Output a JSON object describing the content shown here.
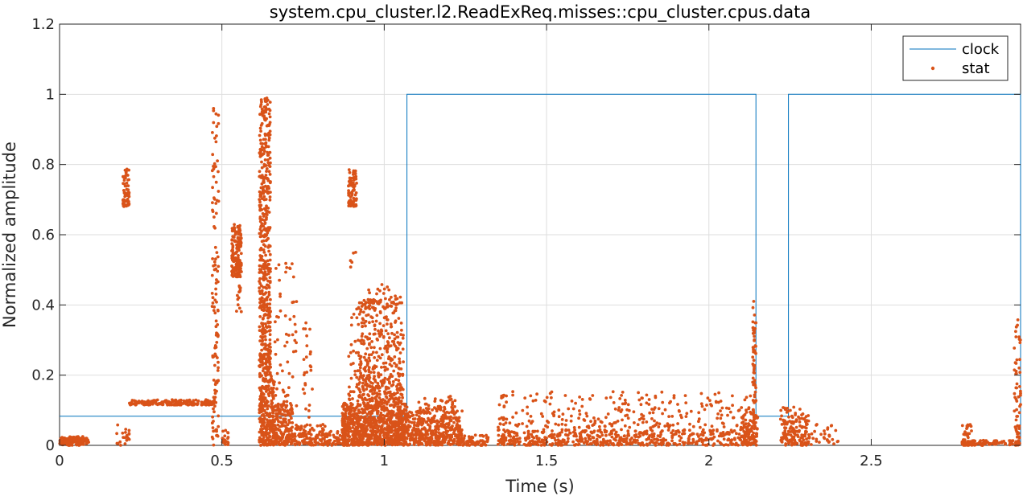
{
  "chart_data": {
    "type": "line",
    "title": "system.cpu_cluster.l2.ReadExReq.misses::cpu_cluster.cpus.data",
    "xlabel": "Time (s)",
    "ylabel": "Normalized amplitude",
    "xlim": [
      0,
      2.96
    ],
    "ylim": [
      0,
      1.2
    ],
    "xticks": [
      0,
      0.5,
      1,
      1.5,
      2,
      2.5
    ],
    "xtick_labels": [
      "0",
      "0.5",
      "1",
      "1.5",
      "2",
      "2.5"
    ],
    "yticks": [
      0,
      0.2,
      0.4,
      0.6,
      0.8,
      1,
      1.2
    ],
    "ytick_labels": [
      "0",
      "0.2",
      "0.4",
      "0.6",
      "0.8",
      "1",
      "1.2"
    ],
    "grid": true,
    "legend_position": "top-right",
    "series": [
      {
        "name": "clock",
        "style": "line",
        "color": "#0072BD",
        "x": [
          0,
          1.07,
          1.07,
          2.145,
          2.145,
          2.245,
          2.245,
          2.96,
          2.96
        ],
        "y": [
          0.083,
          0.083,
          1.0,
          1.0,
          0.083,
          0.083,
          1.0,
          1.0,
          0.0
        ]
      },
      {
        "name": "stat",
        "style": "markers",
        "color": "#D95319",
        "clusters": [
          {
            "x": [
              0.0,
              0.09
            ],
            "y": [
              0.0,
              0.025
            ],
            "n": 90
          },
          {
            "x": [
              0.0,
              0.09
            ],
            "y": [
              0.01,
              0.02
            ],
            "n": 60
          },
          {
            "x": [
              0.175,
              0.215
            ],
            "y": [
              0.0,
              0.06
            ],
            "n": 20
          },
          {
            "x": [
              0.195,
              0.215
            ],
            "y": [
              0.68,
              0.79
            ],
            "n": 60
          },
          {
            "x": [
              0.215,
              0.48
            ],
            "y": [
              0.115,
              0.13
            ],
            "n": 200
          },
          {
            "x": [
              0.47,
              0.49
            ],
            "y": [
              0.0,
              1.0
            ],
            "n": 120
          },
          {
            "x": [
              0.5,
              0.52
            ],
            "y": [
              0.0,
              0.05
            ],
            "n": 20
          },
          {
            "x": [
              0.53,
              0.56
            ],
            "y": [
              0.48,
              0.63
            ],
            "n": 160
          },
          {
            "x": [
              0.545,
              0.56
            ],
            "y": [
              0.38,
              0.64
            ],
            "n": 20
          },
          {
            "x": [
              0.615,
              0.66
            ],
            "y": [
              0.0,
              0.2
            ],
            "n": 250
          },
          {
            "x": [
              0.615,
              0.65
            ],
            "y": [
              0.2,
              0.99
            ],
            "n": 500
          },
          {
            "x": [
              0.655,
              0.72
            ],
            "y": [
              0.0,
              0.12
            ],
            "n": 200
          },
          {
            "x": [
              0.66,
              0.73
            ],
            "y": [
              0.1,
              0.52
            ],
            "n": 60
          },
          {
            "x": [
              0.72,
              0.82
            ],
            "y": [
              0.0,
              0.06
            ],
            "n": 120
          },
          {
            "x": [
              0.75,
              0.78
            ],
            "y": [
              0.08,
              0.4
            ],
            "n": 25
          },
          {
            "x": [
              0.82,
              0.88
            ],
            "y": [
              0.0,
              0.04
            ],
            "n": 50
          },
          {
            "x": [
              0.89,
              0.915
            ],
            "y": [
              0.68,
              0.79
            ],
            "n": 80
          },
          {
            "x": [
              0.89,
              0.92
            ],
            "y": [
              0.1,
              0.55
            ],
            "n": 40
          },
          {
            "x": [
              0.87,
              1.07
            ],
            "y": [
              0.0,
              0.12
            ],
            "n": 900
          },
          {
            "x": [
              0.92,
              1.06
            ],
            "y": [
              0.12,
              0.42
            ],
            "n": 420
          },
          {
            "x": [
              0.95,
              1.05
            ],
            "y": [
              0.4,
              0.46
            ],
            "n": 30
          },
          {
            "x": [
              1.07,
              1.24
            ],
            "y": [
              0.0,
              0.1
            ],
            "n": 420
          },
          {
            "x": [
              1.1,
              1.22
            ],
            "y": [
              0.1,
              0.14
            ],
            "n": 40
          },
          {
            "x": [
              1.24,
              1.32
            ],
            "y": [
              0.0,
              0.03
            ],
            "n": 60
          },
          {
            "x": [
              1.35,
              2.14
            ],
            "y": [
              0.0,
              0.045
            ],
            "n": 550
          },
          {
            "x": [
              1.35,
              2.14
            ],
            "y": [
              0.05,
              0.155
            ],
            "n": 260
          },
          {
            "x": [
              2.1,
              2.15
            ],
            "y": [
              0.0,
              0.1
            ],
            "n": 80
          },
          {
            "x": [
              2.135,
              2.145
            ],
            "y": [
              0.05,
              0.42
            ],
            "n": 60
          },
          {
            "x": [
              2.22,
              2.31
            ],
            "y": [
              0.0,
              0.11
            ],
            "n": 160
          },
          {
            "x": [
              2.31,
              2.4
            ],
            "y": [
              0.0,
              0.06
            ],
            "n": 30
          },
          {
            "x": [
              2.78,
              2.96
            ],
            "y": [
              0.0,
              0.015
            ],
            "n": 80
          },
          {
            "x": [
              2.78,
              2.81
            ],
            "y": [
              0.0,
              0.06
            ],
            "n": 30
          },
          {
            "x": [
              2.94,
              2.96
            ],
            "y": [
              0.0,
              0.37
            ],
            "n": 60
          }
        ]
      }
    ]
  }
}
